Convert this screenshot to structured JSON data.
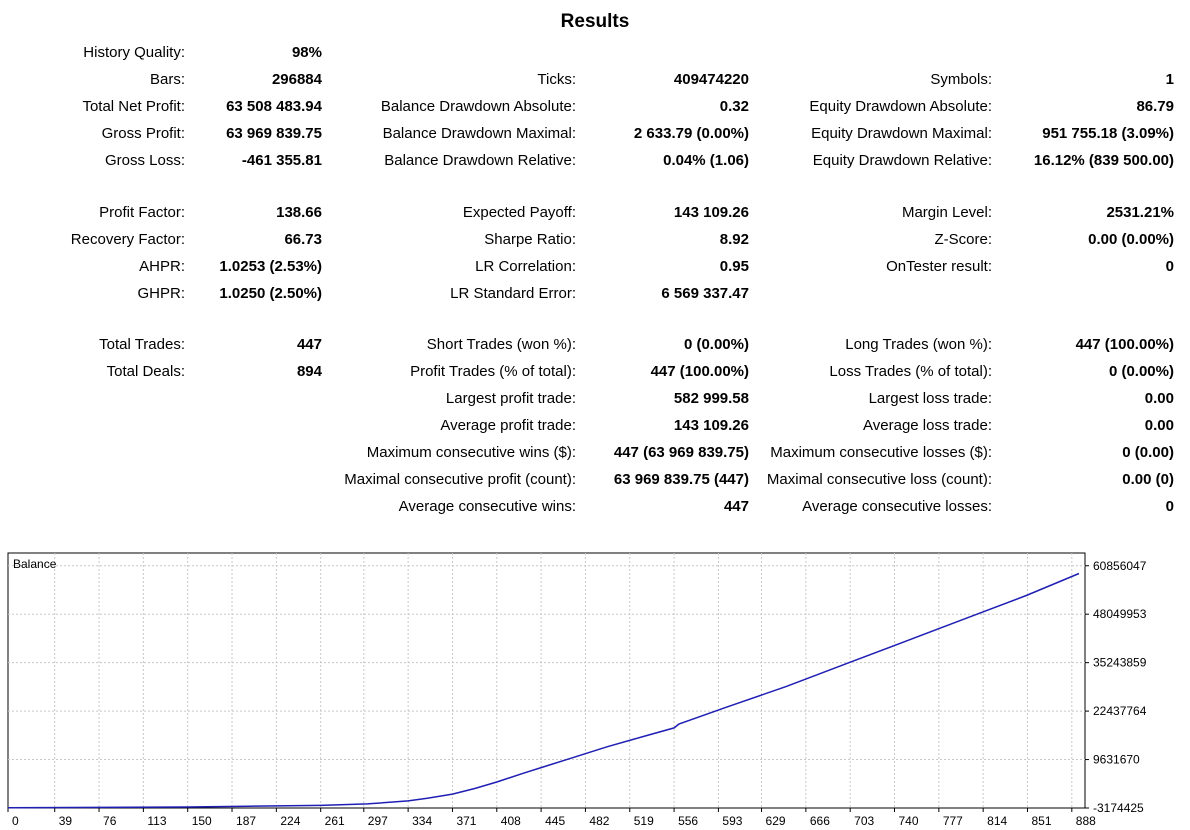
{
  "report": {
    "title": "Results",
    "rows": [
      [
        [
          "History Quality:",
          "98%"
        ],
        null,
        null
      ],
      [
        [
          "Bars:",
          "296884"
        ],
        [
          "Ticks:",
          "409474220"
        ],
        [
          "Symbols:",
          "1"
        ]
      ],
      [
        [
          "Total Net Profit:",
          "63 508 483.94"
        ],
        [
          "Balance Drawdown Absolute:",
          "0.32"
        ],
        [
          "Equity Drawdown Absolute:",
          "86.79"
        ]
      ],
      [
        [
          "Gross Profit:",
          "63 969 839.75"
        ],
        [
          "Balance Drawdown Maximal:",
          "2 633.79 (0.00%)"
        ],
        [
          "Equity Drawdown Maximal:",
          "951 755.18 (3.09%)"
        ]
      ],
      [
        [
          "Gross Loss:",
          "-461 355.81"
        ],
        [
          "Balance Drawdown Relative:",
          "0.04% (1.06)"
        ],
        [
          "Equity Drawdown Relative:",
          "16.12% (839 500.00)"
        ]
      ],
      [
        [
          "Profit Factor:",
          "138.66"
        ],
        [
          "Expected Payoff:",
          "143 109.26"
        ],
        [
          "Margin Level:",
          "2531.21%"
        ]
      ],
      [
        [
          "Recovery Factor:",
          "66.73"
        ],
        [
          "Sharpe Ratio:",
          "8.92"
        ],
        [
          "Z-Score:",
          "0.00 (0.00%)"
        ]
      ],
      [
        [
          "AHPR:",
          "1.0253 (2.53%)"
        ],
        [
          "LR Correlation:",
          "0.95"
        ],
        [
          "OnTester result:",
          "0"
        ]
      ],
      [
        [
          "GHPR:",
          "1.0250 (2.50%)"
        ],
        [
          "LR Standard Error:",
          "6 569 337.47"
        ],
        null
      ],
      [
        [
          "Total Trades:",
          "447"
        ],
        [
          "Short Trades (won %):",
          "0 (0.00%)"
        ],
        [
          "Long Trades (won %):",
          "447 (100.00%)"
        ]
      ],
      [
        [
          "Total Deals:",
          "894"
        ],
        [
          "Profit Trades (% of total):",
          "447 (100.00%)"
        ],
        [
          "Loss Trades (% of total):",
          "0 (0.00%)"
        ]
      ],
      [
        null,
        [
          "Largest profit trade:",
          "582 999.58"
        ],
        [
          "Largest loss trade:",
          "0.00"
        ]
      ],
      [
        null,
        [
          "Average profit trade:",
          "143 109.26"
        ],
        [
          "Average loss trade:",
          "0.00"
        ]
      ],
      [
        null,
        [
          "Maximum consecutive wins ($):",
          "447 (63 969 839.75)"
        ],
        [
          "Maximum consecutive losses ($):",
          "0 (0.00)"
        ]
      ],
      [
        null,
        [
          "Maximal consecutive profit (count):",
          "63 969 839.75 (447)"
        ],
        [
          "Maximal consecutive loss (count):",
          "0.00 (0)"
        ]
      ],
      [
        null,
        [
          "Average consecutive wins:",
          "447"
        ],
        [
          "Average consecutive losses:",
          "0"
        ]
      ]
    ]
  },
  "chart_data": {
    "type": "line",
    "title": "Balance",
    "x_ticks": [
      "0",
      "39",
      "76",
      "113",
      "150",
      "187",
      "224",
      "261",
      "297",
      "334",
      "371",
      "408",
      "445",
      "482",
      "519",
      "556",
      "593",
      "629",
      "666",
      "703",
      "740",
      "777",
      "814",
      "851",
      "888"
    ],
    "y_ticks": [
      "60856047",
      "48049953",
      "35243859",
      "22437764",
      "9631670",
      "-3174425"
    ],
    "y_tick_values": [
      60856047,
      48049953,
      35243859,
      22437764,
      9631670,
      -3174425
    ],
    "xlim": [
      0,
      894
    ],
    "grid": true,
    "line_color": "#1f1fb4",
    "series": [
      {
        "x": [
          0,
          100,
          150,
          200,
          261,
          300,
          334,
          350,
          371,
          390,
          408,
          430,
          445,
          470,
          500,
          530,
          556,
          560,
          600,
          650,
          700,
          750,
          800,
          850,
          894
        ],
        "y": [
          -3100000,
          -3000000,
          -2900000,
          -2700000,
          -2500000,
          -2100000,
          -1300000,
          -600000,
          500000,
          2000000,
          3700000,
          6000000,
          7500000,
          10000000,
          13000000,
          15700000,
          18000000,
          19000000,
          23500000,
          29000000,
          35000000,
          41000000,
          47000000,
          53000000,
          58800000
        ]
      }
    ]
  }
}
